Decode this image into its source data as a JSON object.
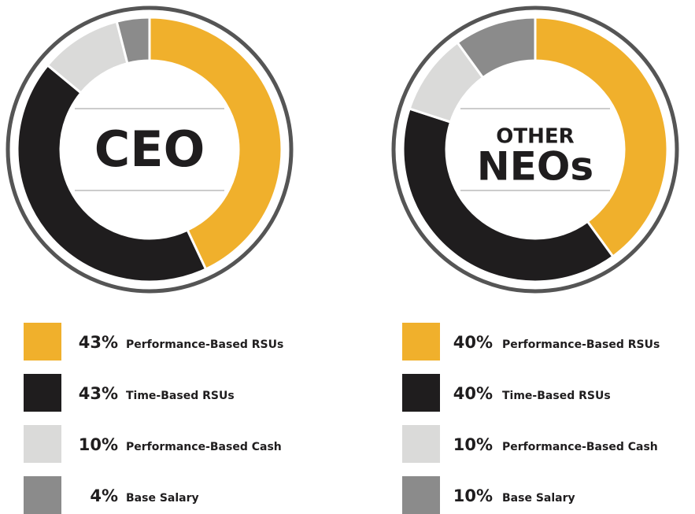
{
  "chart_data": [
    {
      "type": "pie",
      "donut": true,
      "center_label": [
        "CEO"
      ],
      "categories": [
        "Performance-Based RSUs",
        "Time-Based RSUs",
        "Performance-Based Cash",
        "Base Salary"
      ],
      "values": [
        43,
        43,
        10,
        4
      ],
      "value_labels": [
        "43%",
        "43%",
        "10%",
        "4%"
      ],
      "colors": [
        "#f0b02c",
        "#1f1d1e",
        "#dadad9",
        "#8b8b8b"
      ]
    },
    {
      "type": "pie",
      "donut": true,
      "center_label": [
        "OTHER",
        "NEOs"
      ],
      "categories": [
        "Performance-Based RSUs",
        "Time-Based RSUs",
        "Performance-Based Cash",
        "Base Salary"
      ],
      "values": [
        40,
        40,
        10,
        10
      ],
      "value_labels": [
        "40%",
        "40%",
        "10%",
        "10%"
      ],
      "colors": [
        "#f0b02c",
        "#1f1d1e",
        "#dadad9",
        "#8b8b8b"
      ]
    }
  ]
}
